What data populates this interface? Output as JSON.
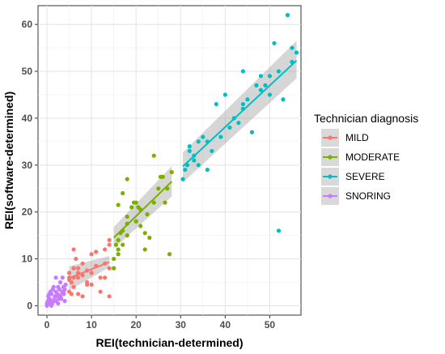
{
  "chart_data": {
    "type": "scatter",
    "xlabel": "REI(technician-determined)",
    "ylabel": "REI(software-determined)",
    "xlim": [
      -2,
      57
    ],
    "ylim": [
      -2,
      64
    ],
    "x_ticks": [
      0,
      10,
      20,
      30,
      40,
      50
    ],
    "y_ticks": [
      0,
      10,
      20,
      30,
      40,
      50,
      60
    ],
    "grid": true,
    "legend_title": "Technician diagnosis",
    "legend_position": "right",
    "series": [
      {
        "name": "MILD",
        "color": "#F8766D",
        "points": [
          [
            5,
            6
          ],
          [
            5,
            7
          ],
          [
            5.5,
            5
          ],
          [
            6,
            6
          ],
          [
            6,
            12
          ],
          [
            6.5,
            10
          ],
          [
            7,
            8
          ],
          [
            7,
            7
          ],
          [
            8,
            9
          ],
          [
            8,
            6.5
          ],
          [
            9,
            7.5
          ],
          [
            9,
            4.5
          ],
          [
            10,
            11
          ],
          [
            10,
            7
          ],
          [
            11,
            8.5
          ],
          [
            11,
            11.5
          ],
          [
            12,
            6
          ],
          [
            13,
            12
          ],
          [
            13,
            9
          ],
          [
            14,
            14
          ],
          [
            14,
            13
          ],
          [
            14,
            8
          ],
          [
            5,
            3
          ],
          [
            5.5,
            2.5
          ],
          [
            6,
            4
          ],
          [
            7,
            2.5
          ],
          [
            8,
            2
          ],
          [
            9,
            5
          ],
          [
            10,
            4.5
          ],
          [
            12,
            3
          ],
          [
            14,
            2
          ],
          [
            13,
            6
          ],
          [
            6,
            8
          ],
          [
            7,
            6
          ],
          [
            5,
            5.5
          ]
        ],
        "fit": {
          "x0": 5,
          "y0": 5.9,
          "x1": 14,
          "y1": 9.3
        },
        "ci": {
          "lower": [
            3.3,
            8.2
          ],
          "upper": [
            8.4,
            10.6
          ]
        }
      },
      {
        "name": "MODERATE",
        "color": "#7CAE00",
        "points": [
          [
            15,
            8
          ],
          [
            15,
            10
          ],
          [
            15.5,
            13
          ],
          [
            16,
            12
          ],
          [
            16,
            14
          ],
          [
            16.5,
            15.5
          ],
          [
            17,
            16
          ],
          [
            16,
            21.5
          ],
          [
            17,
            24
          ],
          [
            18,
            17.5
          ],
          [
            18,
            19
          ],
          [
            18,
            27
          ],
          [
            19,
            21
          ],
          [
            19.5,
            22
          ],
          [
            20,
            22
          ],
          [
            20,
            18
          ],
          [
            20.5,
            21
          ],
          [
            21,
            20.5
          ],
          [
            21,
            17
          ],
          [
            22,
            15.5
          ],
          [
            22,
            12
          ],
          [
            22.5,
            19.5
          ],
          [
            23,
            14.5
          ],
          [
            24,
            32
          ],
          [
            24,
            22
          ],
          [
            25,
            25
          ],
          [
            25.5,
            27.5
          ],
          [
            26,
            27.5
          ],
          [
            26.5,
            22
          ],
          [
            27,
            25
          ],
          [
            27.5,
            11
          ],
          [
            28,
            28.5
          ],
          [
            17,
            13
          ],
          [
            16,
            11
          ],
          [
            18,
            15
          ]
        ],
        "fit": {
          "x0": 15,
          "y0": 14.5,
          "x1": 28,
          "y1": 26.5
        },
        "ci": {
          "lower": [
            12.2,
            23.3
          ],
          "upper": [
            16.8,
            29.8
          ]
        }
      },
      {
        "name": "SEVERE",
        "color": "#00BFC4",
        "points": [
          [
            30.5,
            27
          ],
          [
            31,
            29
          ],
          [
            31.5,
            30
          ],
          [
            32,
            33
          ],
          [
            32,
            34
          ],
          [
            33,
            31
          ],
          [
            33,
            32
          ],
          [
            34,
            30
          ],
          [
            34,
            35
          ],
          [
            35,
            36
          ],
          [
            36,
            35
          ],
          [
            37,
            33
          ],
          [
            38,
            43
          ],
          [
            39,
            36
          ],
          [
            40,
            45
          ],
          [
            41,
            38
          ],
          [
            42,
            40
          ],
          [
            43,
            39
          ],
          [
            44,
            42
          ],
          [
            44,
            50
          ],
          [
            45,
            44
          ],
          [
            46,
            37
          ],
          [
            47,
            47
          ],
          [
            48,
            49
          ],
          [
            48,
            46
          ],
          [
            49,
            47
          ],
          [
            50,
            49
          ],
          [
            50,
            45
          ],
          [
            51,
            56
          ],
          [
            52,
            50
          ],
          [
            52,
            16
          ],
          [
            53,
            44
          ],
          [
            54,
            62
          ],
          [
            55,
            55
          ],
          [
            55,
            52
          ],
          [
            56,
            54
          ],
          [
            36,
            29
          ],
          [
            44,
            43
          ]
        ],
        "fit": {
          "x0": 30.5,
          "y0": 29.7,
          "x1": 56,
          "y1": 52.3
        },
        "ci": {
          "lower": [
            26.3,
            48.5
          ],
          "upper": [
            32.7,
            56.5
          ]
        }
      },
      {
        "name": "SNORING",
        "color": "#C77CFF",
        "points": [
          [
            0,
            0
          ],
          [
            0,
            0.5
          ],
          [
            0.2,
            1
          ],
          [
            0.3,
            2
          ],
          [
            0.5,
            0.5
          ],
          [
            0.5,
            1.5
          ],
          [
            0.8,
            3
          ],
          [
            1,
            0
          ],
          [
            1,
            1
          ],
          [
            1,
            2.5
          ],
          [
            1.2,
            0.5
          ],
          [
            1.5,
            1
          ],
          [
            1.5,
            4
          ],
          [
            1.8,
            2
          ],
          [
            2,
            1
          ],
          [
            2,
            3
          ],
          [
            2,
            6
          ],
          [
            2.3,
            2.5
          ],
          [
            2.5,
            0.5
          ],
          [
            2.5,
            4
          ],
          [
            2.8,
            3.5
          ],
          [
            3,
            2
          ],
          [
            3,
            5
          ],
          [
            3.2,
            1.5
          ],
          [
            3.5,
            3
          ],
          [
            3.5,
            6
          ],
          [
            3.8,
            2.5
          ],
          [
            4,
            3.5
          ],
          [
            4,
            1
          ],
          [
            4.2,
            4.5
          ],
          [
            0.5,
            2.5
          ],
          [
            1.3,
            3.5
          ],
          [
            2.7,
            1.5
          ],
          [
            3.7,
            4
          ]
        ],
        "fit": {
          "x0": 0,
          "y0": 0.4,
          "x1": 4.2,
          "y1": 3.2
        },
        "ci": {
          "lower": [
            -0.3,
            2.4
          ],
          "upper": [
            1.1,
            4.0
          ]
        }
      }
    ]
  }
}
